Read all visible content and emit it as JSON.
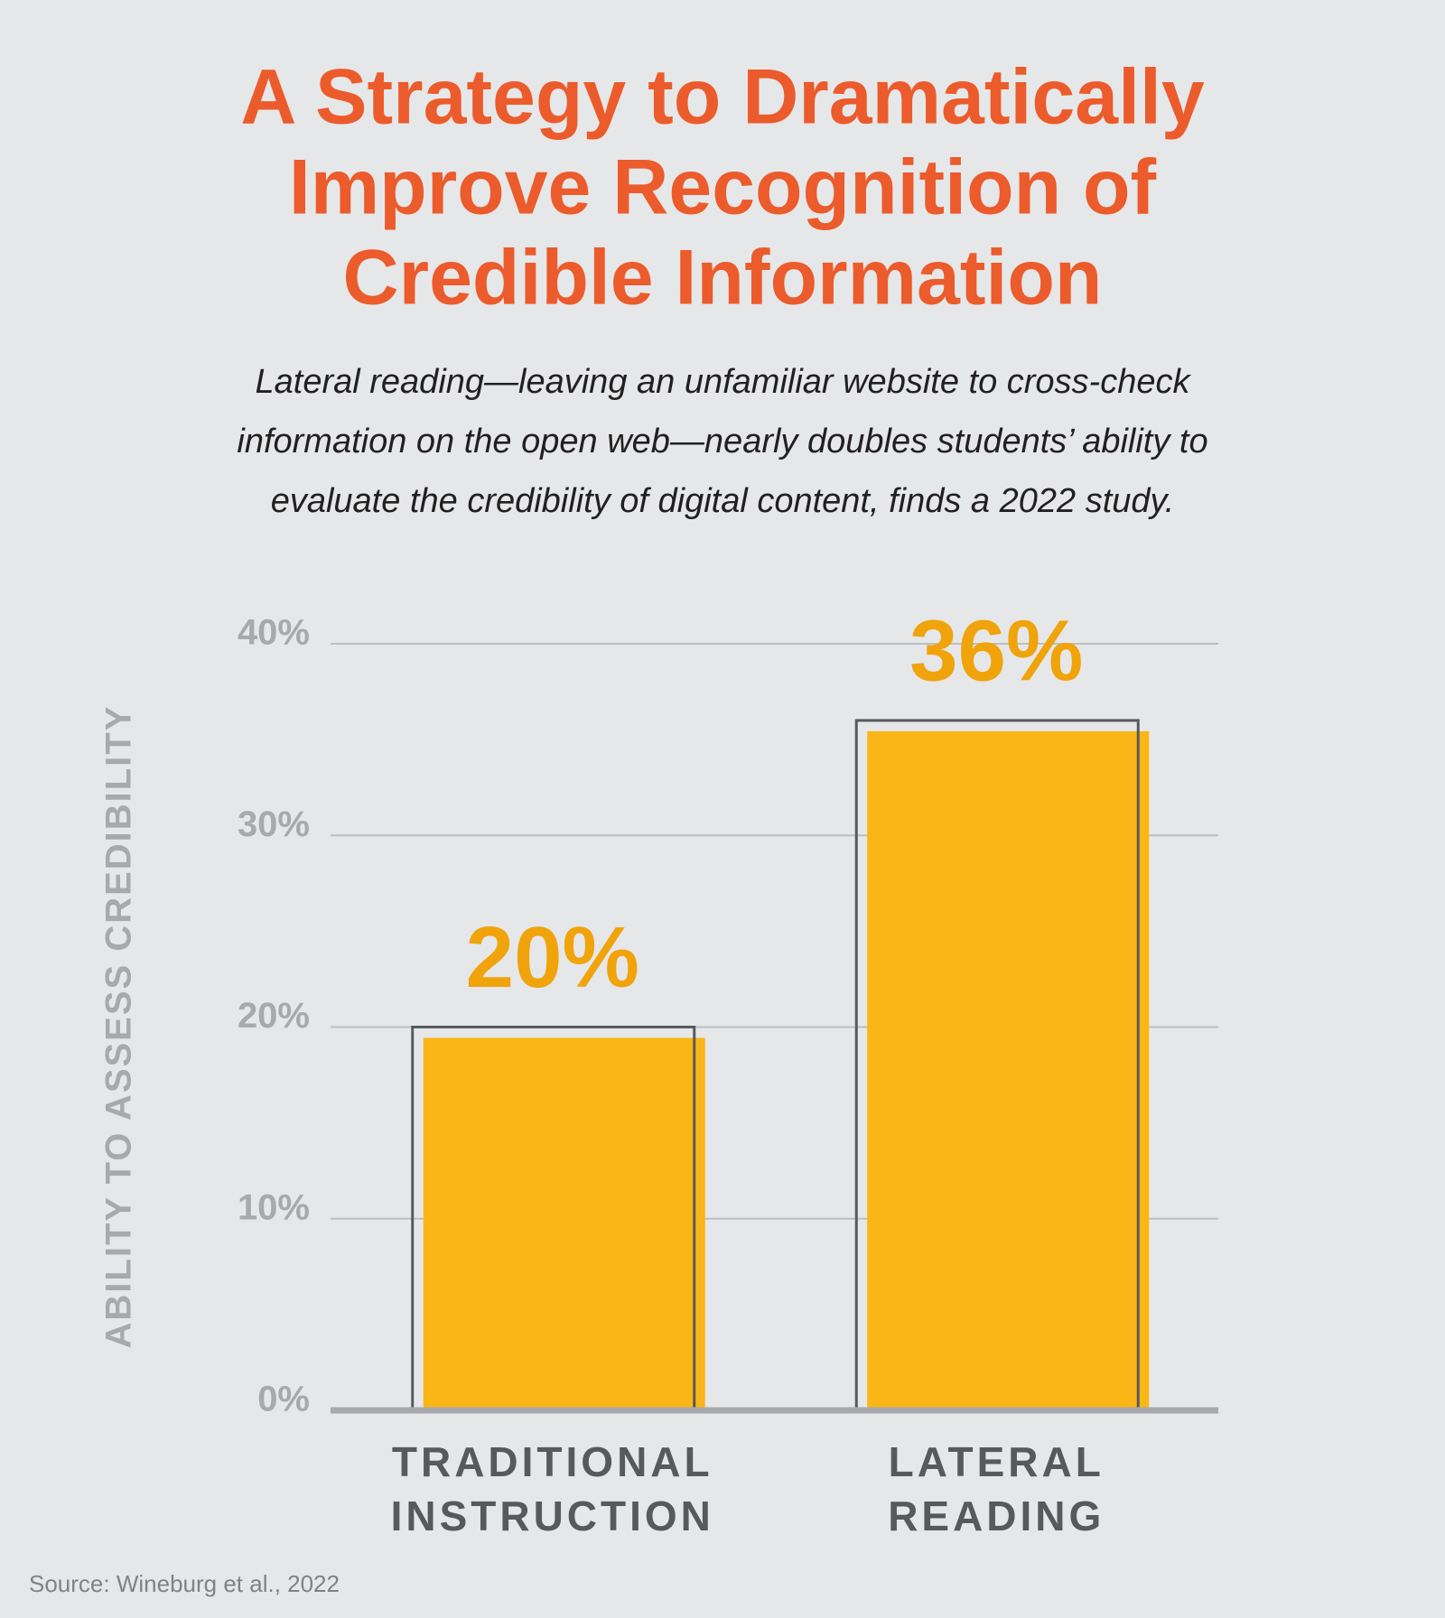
{
  "chart_data": {
    "type": "bar",
    "title": [
      "A Strategy to Dramatically",
      "Improve Recognition of",
      "Credible Information"
    ],
    "subtitle": [
      "Lateral reading—leaving an unfamiliar website to cross-check",
      "information on the open web—nearly doubles students’ ability to",
      "evaluate the credibility of digital content, finds a 2022 study."
    ],
    "y_label": "ABILITY TO ASSESS CREDIBILITY",
    "categories": [
      "TRADITIONAL INSTRUCTION",
      "LATERAL READING"
    ],
    "values": [
      20,
      36
    ],
    "value_labels": [
      "20%",
      "36%"
    ],
    "color": "#f9b616",
    "ylim": [
      0,
      40
    ],
    "yticks": [
      {
        "value": 0,
        "label": "0%"
      },
      {
        "value": 10,
        "label": "10%"
      },
      {
        "value": 20,
        "label": "20%"
      },
      {
        "value": 30,
        "label": "30%"
      },
      {
        "value": 40,
        "label": "40%"
      }
    ],
    "grid": true,
    "source": "Source: Wineburg et al., 2022"
  }
}
